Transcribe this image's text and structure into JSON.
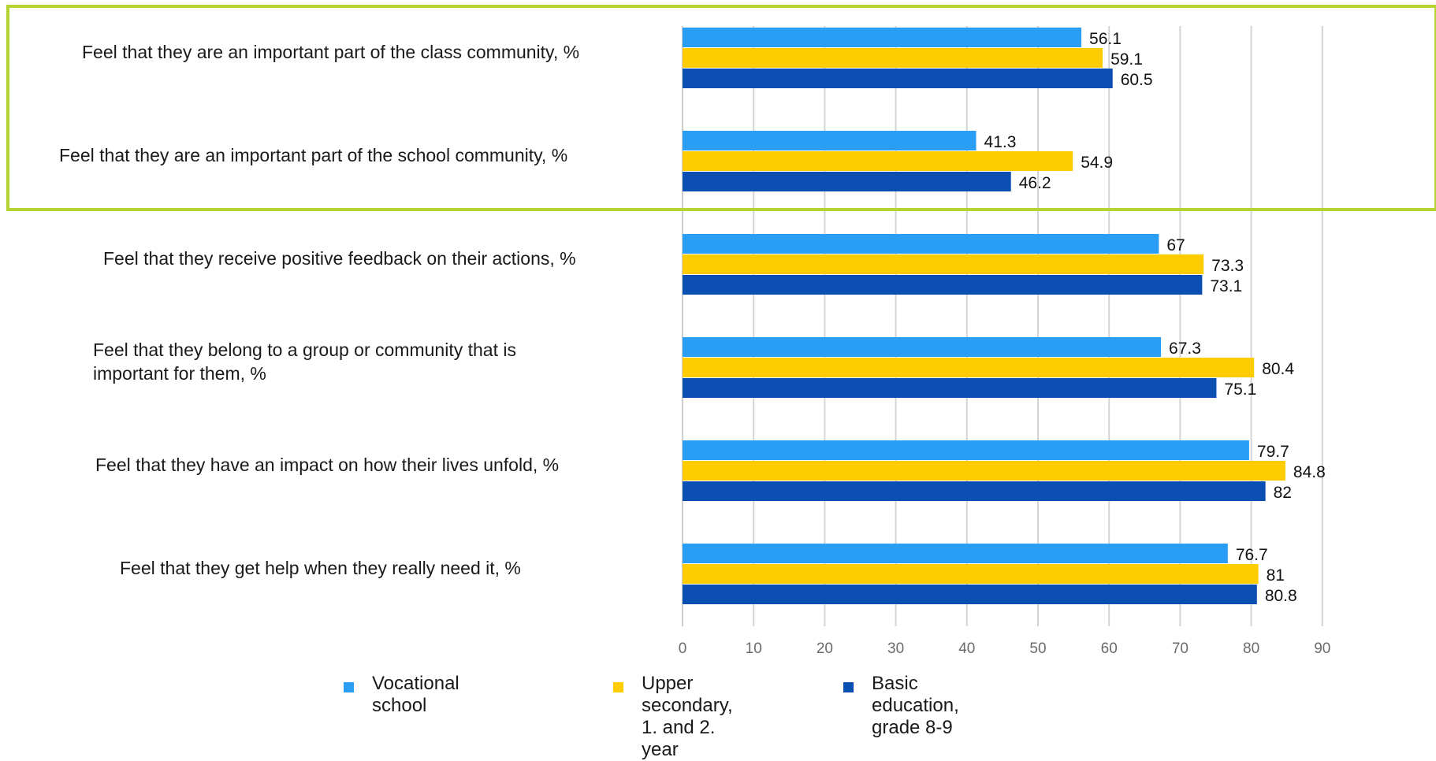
{
  "chart_data": {
    "type": "bar",
    "orientation": "horizontal",
    "categories": [
      "Feel that they are an important part of the class community, %",
      "Feel that they are an important part of the school community, %",
      "Feel that they receive positive feedback on their actions, %",
      "Feel that they belong to a group or community that is important for them, %",
      "Feel that they have an impact on how their lives unfold, %",
      "Feel that they get help when they really need it, %"
    ],
    "category_lines": [
      [
        "Feel that they are an important part of the class community, %"
      ],
      [
        "Feel that they are an important part of the school community, %"
      ],
      [
        "Feel that they receive positive feedback on their actions, %"
      ],
      [
        "Feel that they belong to a group or community that is",
        "important for them, %"
      ],
      [
        "Feel that they have an impact on how their lives unfold, %"
      ],
      [
        "Feel that they get help when they really need it, %"
      ]
    ],
    "series": [
      {
        "name": "Vocational school",
        "legend_lines": [
          "Vocational school"
        ],
        "color": "#2a9df4",
        "values": [
          56.1,
          41.3,
          67,
          67.3,
          79.7,
          76.7
        ]
      },
      {
        "name": "Upper secondary, 1. and 2. year",
        "legend_lines": [
          "Upper secondary,",
          "1. and 2. year"
        ],
        "color": "#ffcc00",
        "values": [
          59.1,
          54.9,
          73.3,
          80.4,
          84.8,
          81
        ]
      },
      {
        "name": "Basic education, grade 8-9",
        "legend_lines": [
          "Basic education,",
          "grade 8-9"
        ],
        "color": "#0b4fb3",
        "values": [
          60.5,
          46.2,
          73.1,
          75.1,
          82,
          80.8
        ]
      }
    ],
    "xlim": [
      0,
      90
    ],
    "xticks": [
      0,
      10,
      20,
      30,
      40,
      50,
      60,
      70,
      80,
      90
    ],
    "grid": true,
    "legend_position": "bottom",
    "highlight": {
      "categories": [
        0,
        1
      ],
      "color": "#b5d334"
    },
    "title": "",
    "xlabel": "",
    "ylabel": ""
  }
}
